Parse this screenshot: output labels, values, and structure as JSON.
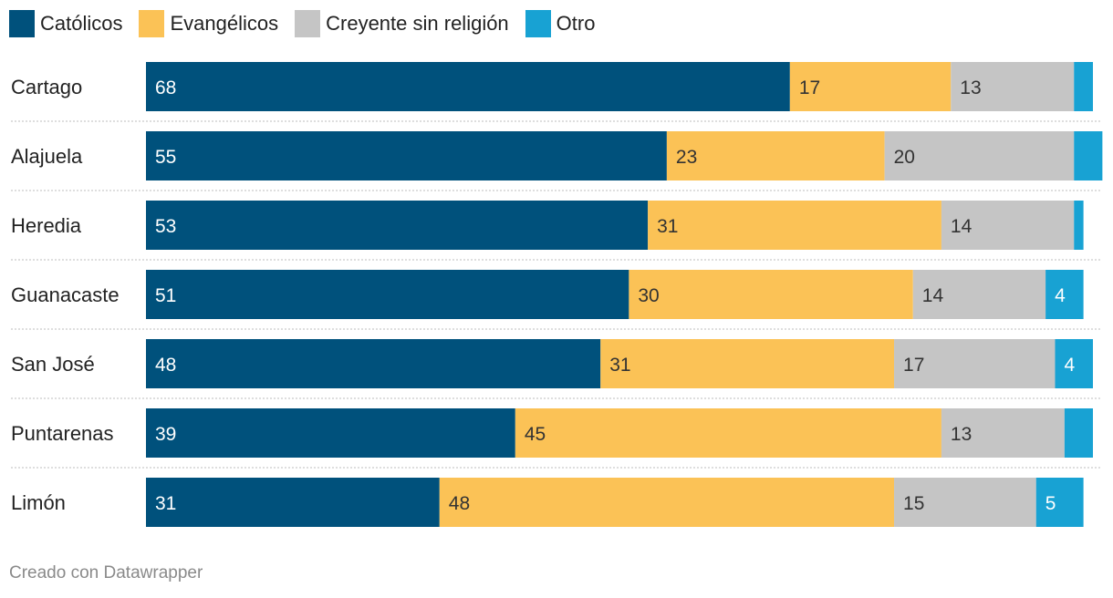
{
  "legend": [
    {
      "label": "Católicos",
      "color": "#00517c"
    },
    {
      "label": "Evangélicos",
      "color": "#fbc256"
    },
    {
      "label": "Creyente sin religión",
      "color": "#c5c5c5"
    },
    {
      "label": "Otro",
      "color": "#18a2d3"
    }
  ],
  "footer": {
    "credit": "Creado con Datawrapper"
  },
  "chart_data": {
    "type": "bar",
    "orientation": "horizontal",
    "stacked": true,
    "categories": [
      "Cartago",
      "Alajuela",
      "Heredia",
      "Guanacaste",
      "San José",
      "Puntarenas",
      "Limón"
    ],
    "series": [
      {
        "name": "Católicos",
        "color": "#00517c",
        "values": [
          68,
          55,
          53,
          51,
          48,
          39,
          31
        ],
        "label_color": "#ffffff"
      },
      {
        "name": "Evangélicos",
        "color": "#fbc256",
        "values": [
          17,
          23,
          31,
          30,
          31,
          45,
          48
        ],
        "label_color": "#333333"
      },
      {
        "name": "Creyente sin religión",
        "color": "#c5c5c5",
        "values": [
          13,
          20,
          14,
          14,
          17,
          13,
          15
        ],
        "label_color": "#333333"
      },
      {
        "name": "Otro",
        "color": "#18a2d3",
        "values": [
          2,
          3,
          1,
          4,
          4,
          3,
          5
        ],
        "label_color": "#ffffff"
      }
    ],
    "value_labels_shown": [
      [
        true,
        true,
        true,
        false
      ],
      [
        true,
        true,
        true,
        false
      ],
      [
        true,
        true,
        true,
        false
      ],
      [
        true,
        true,
        true,
        true
      ],
      [
        true,
        true,
        true,
        true
      ],
      [
        true,
        true,
        true,
        false
      ],
      [
        true,
        true,
        true,
        true
      ]
    ],
    "xlim": [
      0,
      100
    ],
    "legend_position": "top-left",
    "grid": false
  }
}
